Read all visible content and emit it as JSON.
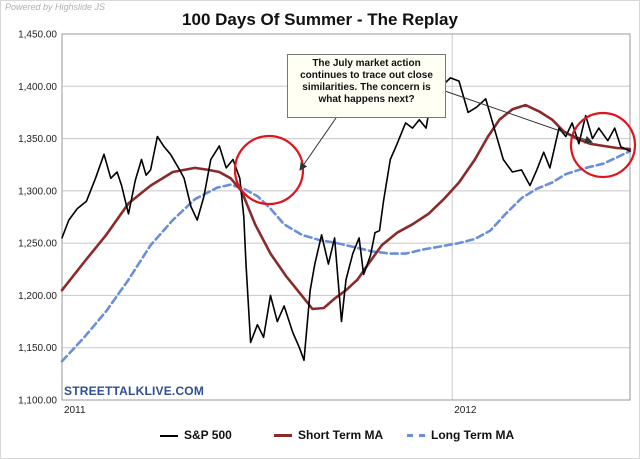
{
  "credits": "Powered by Highslide JS",
  "brand": "STREETTALKLIVE.COM",
  "annotation": "The July market action continues to trace out close similarities.  The concern is what happens next?",
  "colors": {
    "sp500": "#000000",
    "short_ma": "#8b2a2a",
    "long_ma": "#6a8fd8",
    "circle": "#e0141e",
    "grid": "#c8c8c8"
  },
  "chart_data": {
    "type": "line",
    "title": "100 Days Of Summer - The Replay",
    "xlabel": "",
    "ylabel": "",
    "x_tick_labels": [
      {
        "label": "2011",
        "t": 0
      },
      {
        "label": "2012",
        "t": 0.687
      }
    ],
    "x_range": [
      "2011-01",
      "2012-07"
    ],
    "y_ticks": [
      1100,
      1150,
      1200,
      1250,
      1300,
      1350,
      1400,
      1450
    ],
    "y_tick_labels": [
      "1,100.00",
      "1,150.00",
      "1,200.00",
      "1,250.00",
      "1,300.00",
      "1,350.00",
      "1,400.00",
      "1,450.00"
    ],
    "ylim": [
      1100,
      1450
    ],
    "grid": true,
    "legend_position": "bottom",
    "series": [
      {
        "name": "S&P 500",
        "style": "solid",
        "x": [
          0,
          0.012,
          0.027,
          0.043,
          0.059,
          0.074,
          0.086,
          0.097,
          0.105,
          0.117,
          0.129,
          0.14,
          0.148,
          0.156,
          0.168,
          0.18,
          0.191,
          0.207,
          0.215,
          0.227,
          0.238,
          0.25,
          0.262,
          0.277,
          0.289,
          0.301,
          0.313,
          0.32,
          0.324,
          0.332,
          0.344,
          0.355,
          0.367,
          0.379,
          0.391,
          0.406,
          0.418,
          0.426,
          0.437,
          0.445,
          0.457,
          0.469,
          0.48,
          0.492,
          0.5,
          0.512,
          0.523,
          0.531,
          0.543,
          0.551,
          0.559,
          0.566,
          0.578,
          0.59,
          0.605,
          0.617,
          0.629,
          0.641,
          0.652,
          0.668,
          0.684,
          0.699,
          0.715,
          0.73,
          0.746,
          0.762,
          0.777,
          0.793,
          0.809,
          0.824,
          0.836,
          0.848,
          0.859,
          0.875,
          0.887,
          0.898,
          0.91,
          0.922,
          0.934,
          0.945,
          0.961,
          0.973,
          0.984,
          1
        ],
        "y": [
          1255,
          1272,
          1283,
          1290,
          1312,
          1335,
          1312,
          1318,
          1305,
          1278,
          1310,
          1330,
          1315,
          1320,
          1352,
          1342,
          1335,
          1320,
          1312,
          1285,
          1272,
          1295,
          1330,
          1343,
          1322,
          1330,
          1312,
          1275,
          1230,
          1155,
          1172,
          1160,
          1200,
          1175,
          1190,
          1165,
          1150,
          1138,
          1205,
          1230,
          1258,
          1230,
          1255,
          1175,
          1215,
          1240,
          1255,
          1220,
          1238,
          1260,
          1262,
          1290,
          1330,
          1345,
          1365,
          1360,
          1368,
          1360,
          1395,
          1400,
          1408,
          1405,
          1375,
          1380,
          1388,
          1358,
          1330,
          1318,
          1320,
          1305,
          1320,
          1337,
          1322,
          1360,
          1352,
          1365,
          1345,
          1372,
          1350,
          1360,
          1348,
          1360,
          1342,
          1338
        ]
      },
      {
        "name": "Short Term MA",
        "style": "solid",
        "x": [
          0,
          0.039,
          0.078,
          0.117,
          0.156,
          0.195,
          0.234,
          0.258,
          0.277,
          0.297,
          0.316,
          0.34,
          0.367,
          0.395,
          0.422,
          0.441,
          0.461,
          0.48,
          0.5,
          0.52,
          0.539,
          0.563,
          0.59,
          0.617,
          0.645,
          0.672,
          0.699,
          0.727,
          0.75,
          0.77,
          0.793,
          0.816,
          0.84,
          0.863,
          0.883,
          0.906,
          0.93,
          0.953,
          0.977,
          1
        ],
        "y": [
          1205,
          1232,
          1258,
          1288,
          1305,
          1318,
          1322,
          1320,
          1318,
          1312,
          1300,
          1268,
          1240,
          1218,
          1200,
          1187,
          1188,
          1197,
          1205,
          1215,
          1230,
          1248,
          1260,
          1268,
          1278,
          1292,
          1308,
          1330,
          1352,
          1368,
          1378,
          1382,
          1376,
          1368,
          1357,
          1350,
          1345,
          1343,
          1341,
          1340
        ]
      },
      {
        "name": "Long Term MA",
        "style": "dashed",
        "x": [
          0,
          0.039,
          0.078,
          0.117,
          0.156,
          0.195,
          0.234,
          0.273,
          0.297,
          0.32,
          0.344,
          0.367,
          0.391,
          0.422,
          0.453,
          0.484,
          0.516,
          0.547,
          0.578,
          0.605,
          0.637,
          0.668,
          0.699,
          0.727,
          0.754,
          0.781,
          0.809,
          0.836,
          0.863,
          0.887,
          0.91,
          0.93,
          0.953,
          0.977,
          1
        ],
        "y": [
          1137,
          1160,
          1185,
          1215,
          1248,
          1272,
          1292,
          1303,
          1306,
          1302,
          1295,
          1283,
          1268,
          1258,
          1253,
          1250,
          1246,
          1242,
          1240,
          1240,
          1244,
          1247,
          1250,
          1254,
          1262,
          1278,
          1293,
          1302,
          1308,
          1316,
          1320,
          1323,
          1326,
          1332,
          1338
        ]
      }
    ],
    "annotations": [
      "The July market action continues to trace out close similarities.  The concern is what happens next?"
    ]
  }
}
